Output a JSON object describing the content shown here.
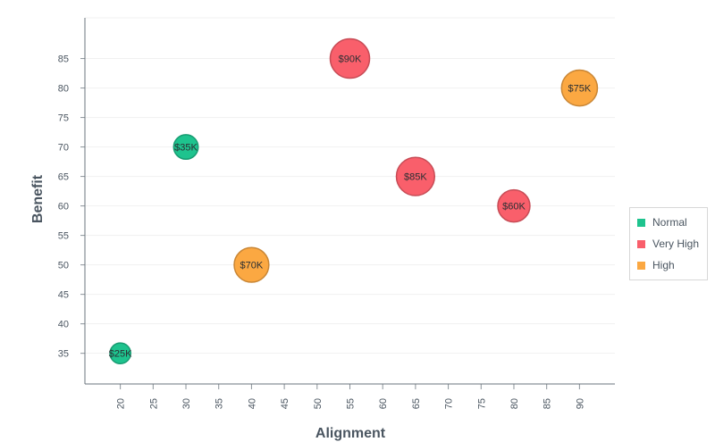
{
  "chart_data": {
    "type": "scatter",
    "bubble": true,
    "xlabel": "Alignment",
    "ylabel": "Benefit",
    "x_ticks": [
      20,
      25,
      30,
      35,
      40,
      45,
      50,
      55,
      60,
      65,
      70,
      75,
      80,
      85,
      90
    ],
    "y_ticks": [
      35,
      40,
      45,
      50,
      55,
      60,
      65,
      70,
      75,
      80,
      85
    ],
    "xlim": [
      14.6,
      95.4
    ],
    "ylim": [
      29.8,
      91.9
    ],
    "grid": true,
    "legend_position": "right",
    "series": [
      {
        "name": "Normal",
        "color": "#1ec38e",
        "points": [
          {
            "x": 20,
            "y": 35,
            "size": 25,
            "label": "$25K"
          },
          {
            "x": 30,
            "y": 70,
            "size": 35,
            "label": "$35K"
          }
        ]
      },
      {
        "name": "Very High",
        "color": "#f95f6b",
        "points": [
          {
            "x": 55,
            "y": 85,
            "size": 90,
            "label": "$90K"
          },
          {
            "x": 65,
            "y": 65,
            "size": 85,
            "label": "$85K"
          },
          {
            "x": 80,
            "y": 60,
            "size": 60,
            "label": "$60K"
          }
        ]
      },
      {
        "name": "High",
        "color": "#fba842",
        "points": [
          {
            "x": 40,
            "y": 50,
            "size": 70,
            "label": "$70K"
          },
          {
            "x": 90,
            "y": 80,
            "size": 75,
            "label": "$75K"
          }
        ]
      }
    ]
  }
}
